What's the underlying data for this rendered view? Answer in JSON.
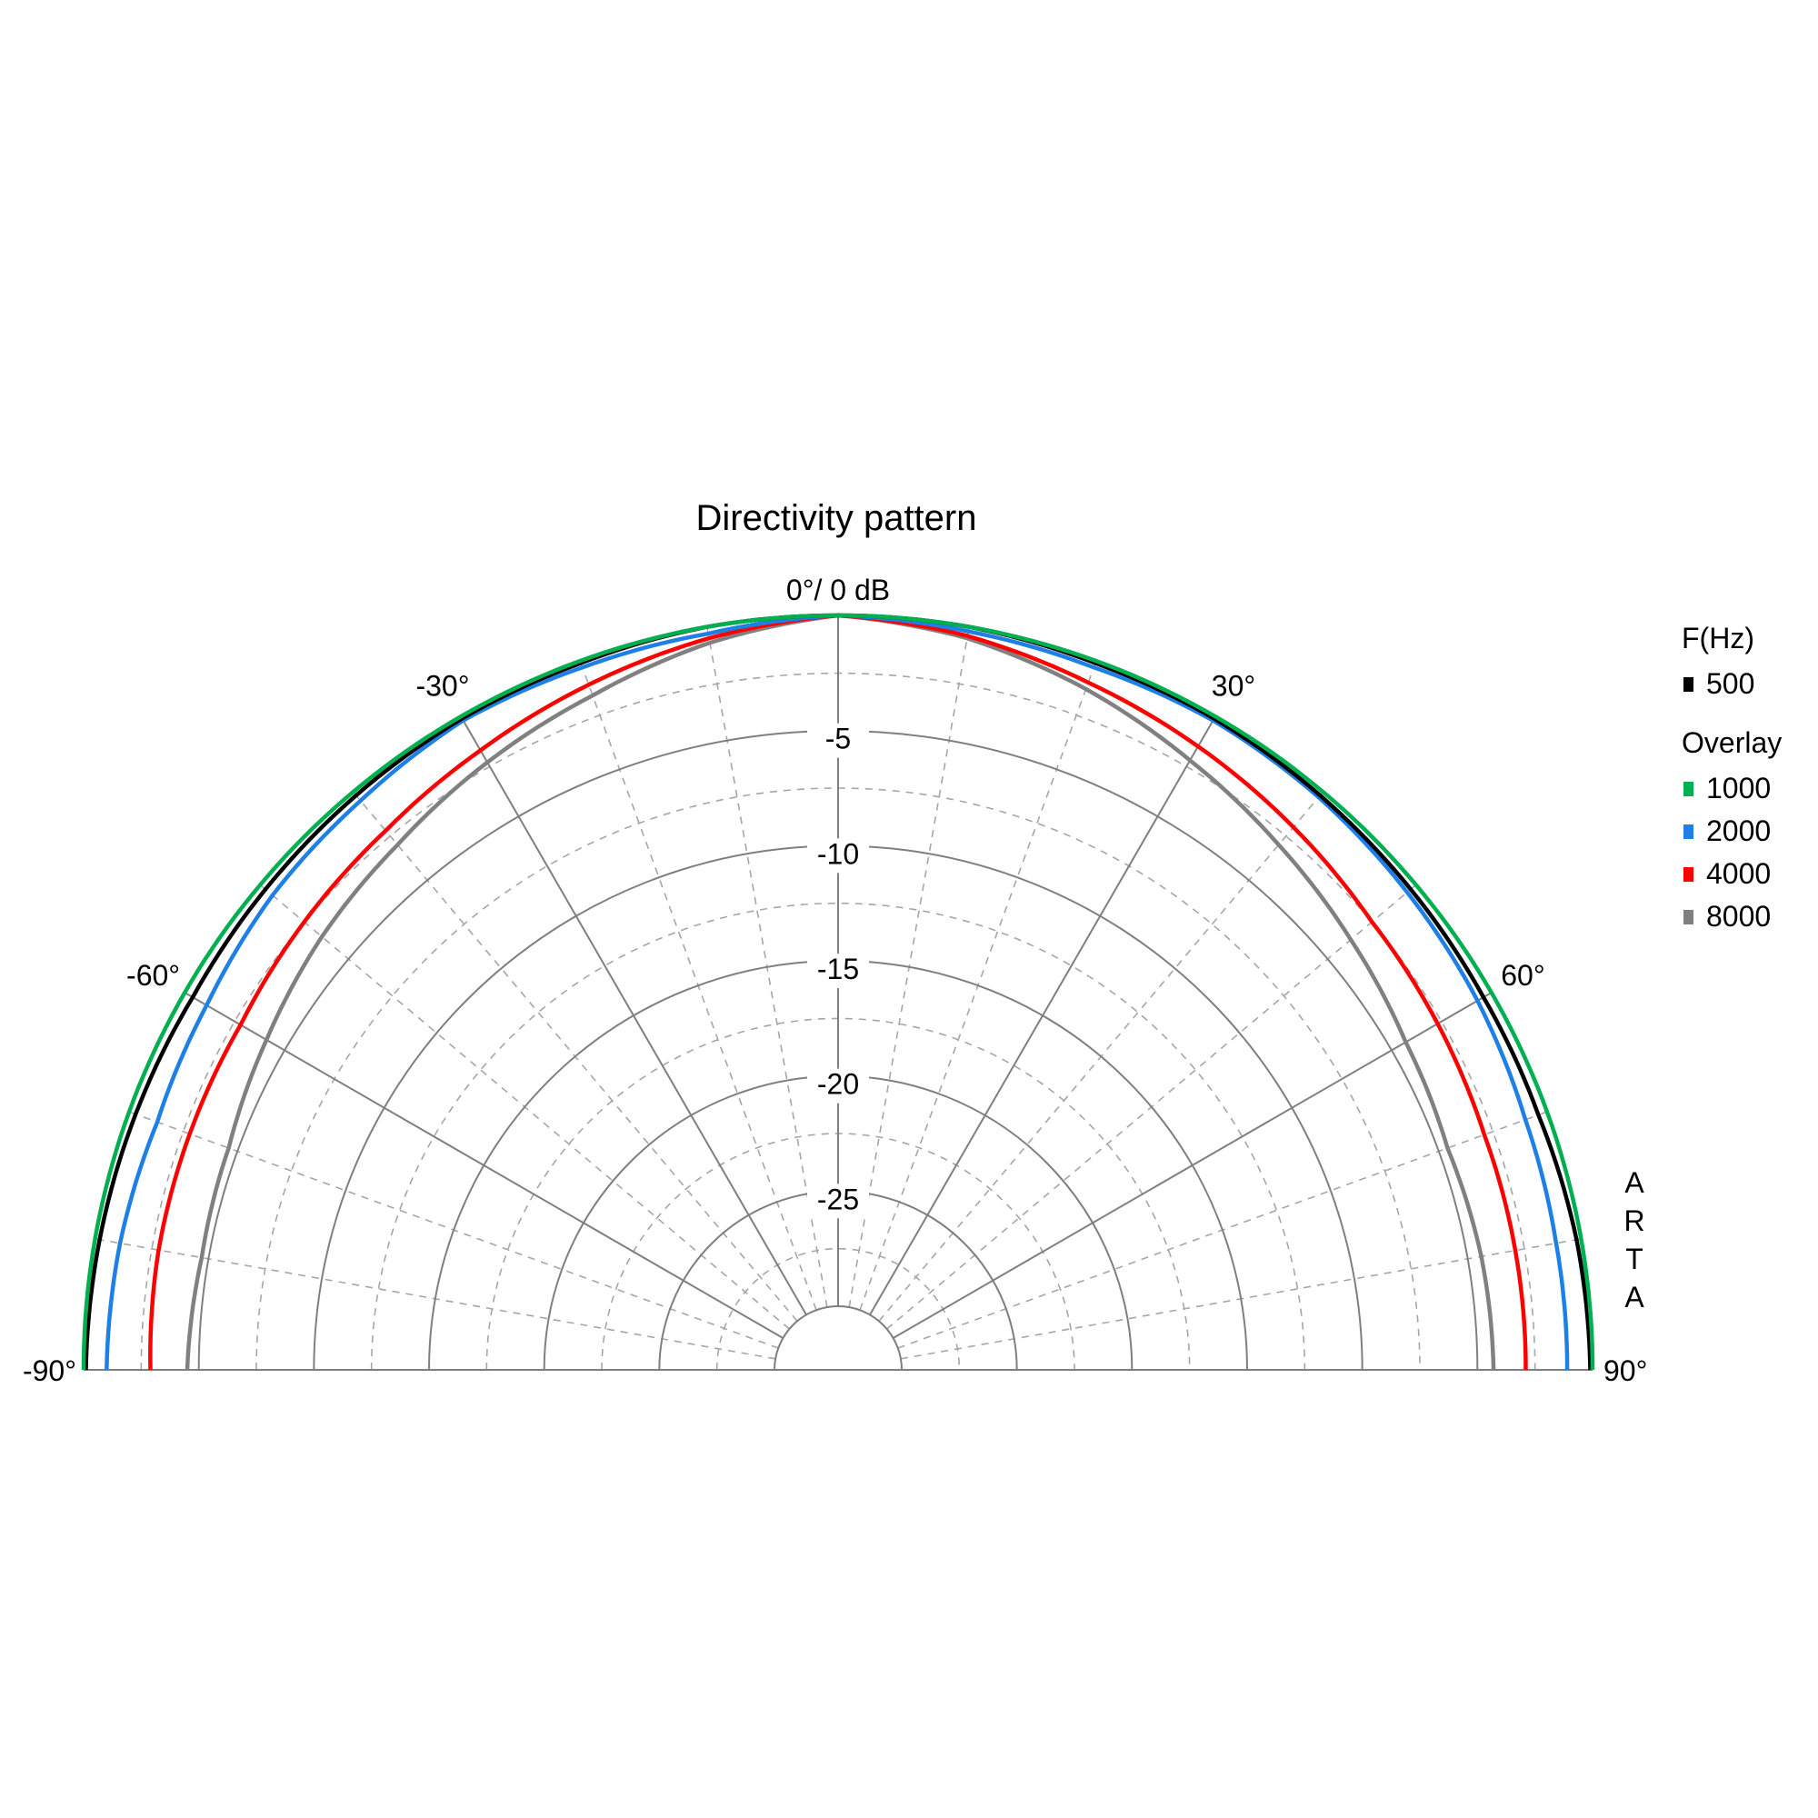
{
  "chart_data": {
    "type": "polar",
    "title": "Directivity pattern",
    "top_label": "0°/ 0 dB",
    "angle_range": [
      -90,
      90
    ],
    "angle_ticks": [
      -90,
      -60,
      -30,
      30,
      60,
      90
    ],
    "angle_tick_labels": [
      "-90°",
      "-60°",
      "-30°",
      "30°",
      "60°",
      "90°"
    ],
    "radial_range_db": [
      -30,
      0
    ],
    "radial_ticks": [
      -5,
      -10,
      -15,
      -20,
      -25
    ],
    "radial_tick_labels": [
      "-5",
      "-10",
      "-15",
      "-20",
      "-25"
    ],
    "grid": true,
    "legend": {
      "position": "right",
      "header": "F(Hz)",
      "overlay_header": "Overlay"
    },
    "watermark": "ARTA",
    "angles": [
      -90,
      -80,
      -70,
      -60,
      -50,
      -40,
      -30,
      -20,
      -10,
      0,
      10,
      20,
      30,
      40,
      50,
      60,
      70,
      80,
      90
    ],
    "series": [
      {
        "name": "500",
        "color": "#000000",
        "values_db": [
          -0.1,
          -0.2,
          -0.3,
          -0.4,
          -0.3,
          -0.2,
          -0.1,
          -0.1,
          0,
          0,
          0,
          -0.1,
          -0.1,
          -0.2,
          -0.3,
          -0.4,
          -0.4,
          -0.2,
          -0.1
        ]
      },
      {
        "name": "1000",
        "color": "#00b050",
        "values_db": [
          0,
          0,
          0,
          0,
          0,
          0,
          0,
          0,
          0,
          0,
          0,
          0,
          0,
          0,
          0,
          0,
          0,
          0,
          0
        ]
      },
      {
        "name": "2000",
        "color": "#1e7fe6",
        "values_db": [
          -1,
          -1.1,
          -1.3,
          -1.1,
          -0.7,
          -0.5,
          -0.2,
          -0.3,
          -0.3,
          0,
          -0.2,
          -0.3,
          -0.2,
          -0.3,
          -0.5,
          -0.7,
          -1.0,
          -1.1,
          -1.1
        ]
      },
      {
        "name": "4000",
        "color": "#ff0000",
        "values_db": [
          -2.9,
          -2.8,
          -2.8,
          -2.8,
          -2.5,
          -2.2,
          -1.7,
          -1.1,
          -0.5,
          0,
          -0.4,
          -1.0,
          -1.5,
          -2.0,
          -2.5,
          -2.7,
          -2.9,
          -2.9,
          -2.9
        ]
      },
      {
        "name": "8000",
        "color": "#808080",
        "values_db": [
          -4.5,
          -4.7,
          -4.6,
          -4.1,
          -3.5,
          -3.0,
          -2.3,
          -1.6,
          -0.7,
          0,
          -0.5,
          -1.3,
          -2.2,
          -3.0,
          -3.7,
          -4.3,
          -4.6,
          -4.4,
          -4.3
        ]
      }
    ]
  }
}
